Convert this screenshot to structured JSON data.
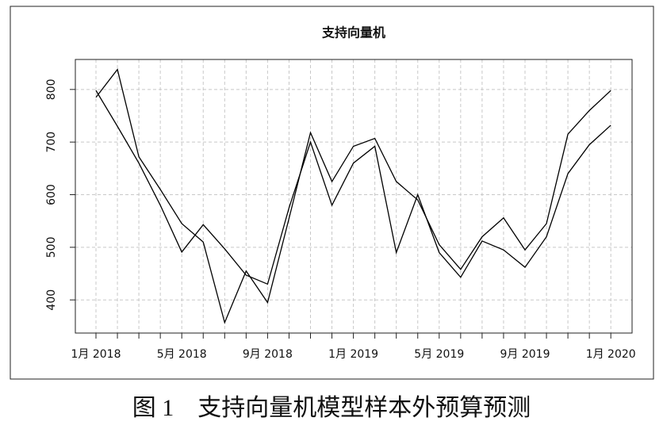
{
  "chart_data": {
    "type": "line",
    "title": "支持向量机",
    "caption": "图 1　支持向量机模型样本外预算预测",
    "categories": [
      "1月 2018",
      null,
      null,
      null,
      "5月 2018",
      null,
      null,
      null,
      "9月 2018",
      null,
      null,
      null,
      "1月 2019",
      null,
      null,
      null,
      "5月 2019",
      null,
      null,
      null,
      "9月 2019",
      null,
      null,
      null,
      "1月 2020"
    ],
    "series": [
      {
        "color": "#000000",
        "values": [
          785,
          838,
          672,
          610,
          545,
          510,
          357,
          455,
          395,
          555,
          718,
          625,
          692,
          707,
          625,
          590,
          505,
          458,
          520,
          556,
          495,
          545,
          715,
          760,
          798
        ]
      },
      {
        "color": "#000000",
        "values": [
          798,
          730,
          660,
          580,
          491,
          543,
          497,
          447,
          430,
          575,
          700,
          580,
          660,
          692,
          490,
          600,
          490,
          443,
          512,
          495,
          462,
          520,
          640,
          695,
          732
        ]
      }
    ],
    "ylim": [
      337,
      857
    ],
    "yticks": [
      400,
      500,
      600,
      700,
      800
    ],
    "grid": true
  }
}
